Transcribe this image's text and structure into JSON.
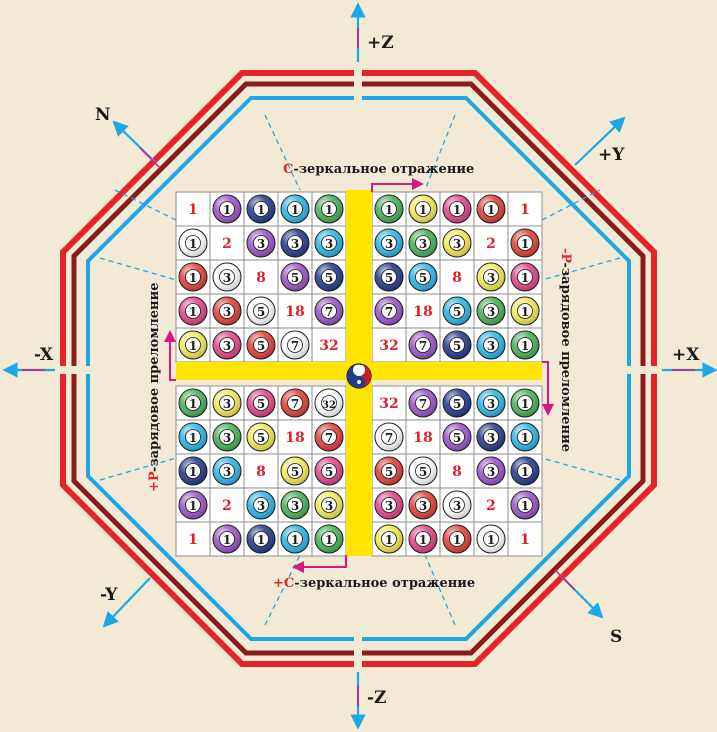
{
  "axes": {
    "plus_z": "+Z",
    "minus_z": "-Z",
    "plus_x": "+X",
    "minus_x": "-X",
    "plus_y": "+Y",
    "minus_y": "-Y",
    "n": "N",
    "s": "S"
  },
  "captions": {
    "top": [
      "-зеркальное отражение",
      "C"
    ],
    "bottom": [
      "-зеркальное отражение",
      "+C"
    ],
    "left": [
      "-зарядовое преломление",
      "+P"
    ],
    "right": [
      "-зарядовое преломление",
      "-P"
    ]
  },
  "colors": {
    "outer_red": "#e3242b",
    "outer_dark": "#8b1c1c",
    "inner_blue": "#1ea7e6",
    "band_yellow": "#ffe500",
    "arrow_magenta": "#d6197d",
    "plain_number": "#e0202a"
  },
  "quadrants": {
    "tl": [
      [
        {
          "n": "1",
          "c": "plain"
        },
        {
          "n": "1",
          "c": "purple"
        },
        {
          "n": "1",
          "c": "navy"
        },
        {
          "n": "1",
          "c": "cyan"
        },
        {
          "n": "1",
          "c": "green"
        }
      ],
      [
        {
          "n": "1",
          "c": "white"
        },
        {
          "n": "2",
          "c": "plain"
        },
        {
          "n": "3",
          "c": "purple"
        },
        {
          "n": "3",
          "c": "navy"
        },
        {
          "n": "3",
          "c": "cyan"
        }
      ],
      [
        {
          "n": "1",
          "c": "red"
        },
        {
          "n": "3",
          "c": "white"
        },
        {
          "n": "8",
          "c": "plain"
        },
        {
          "n": "5",
          "c": "purple"
        },
        {
          "n": "5",
          "c": "navy"
        }
      ],
      [
        {
          "n": "1",
          "c": "pink"
        },
        {
          "n": "3",
          "c": "red"
        },
        {
          "n": "5",
          "c": "white"
        },
        {
          "n": "18",
          "c": "plain"
        },
        {
          "n": "7",
          "c": "purple"
        }
      ],
      [
        {
          "n": "1",
          "c": "yellow"
        },
        {
          "n": "3",
          "c": "pink"
        },
        {
          "n": "5",
          "c": "red"
        },
        {
          "n": "7",
          "c": "white"
        },
        {
          "n": "32",
          "c": "plain"
        }
      ]
    ],
    "tr": [
      [
        {
          "n": "1",
          "c": "green"
        },
        {
          "n": "1",
          "c": "yellow"
        },
        {
          "n": "1",
          "c": "pink"
        },
        {
          "n": "1",
          "c": "red"
        },
        {
          "n": "1",
          "c": "plain"
        }
      ],
      [
        {
          "n": "3",
          "c": "cyan"
        },
        {
          "n": "3",
          "c": "green"
        },
        {
          "n": "3",
          "c": "yellow"
        },
        {
          "n": "2",
          "c": "plain"
        },
        {
          "n": "1",
          "c": "red"
        }
      ],
      [
        {
          "n": "5",
          "c": "navy"
        },
        {
          "n": "5",
          "c": "cyan"
        },
        {
          "n": "8",
          "c": "plain"
        },
        {
          "n": "3",
          "c": "yellow"
        },
        {
          "n": "1",
          "c": "pink"
        }
      ],
      [
        {
          "n": "7",
          "c": "purple"
        },
        {
          "n": "18",
          "c": "plain"
        },
        {
          "n": "5",
          "c": "cyan"
        },
        {
          "n": "3",
          "c": "green"
        },
        {
          "n": "1",
          "c": "yellow"
        }
      ],
      [
        {
          "n": "32",
          "c": "plain"
        },
        {
          "n": "7",
          "c": "purple"
        },
        {
          "n": "5",
          "c": "navy"
        },
        {
          "n": "3",
          "c": "cyan"
        },
        {
          "n": "1",
          "c": "green"
        }
      ]
    ],
    "bl": [
      [
        {
          "n": "1",
          "c": "green"
        },
        {
          "n": "3",
          "c": "yellow"
        },
        {
          "n": "5",
          "c": "pink"
        },
        {
          "n": "7",
          "c": "red"
        },
        {
          "n": "32",
          "c": "white"
        }
      ],
      [
        {
          "n": "1",
          "c": "cyan"
        },
        {
          "n": "3",
          "c": "green"
        },
        {
          "n": "5",
          "c": "yellow"
        },
        {
          "n": "18",
          "c": "plain"
        },
        {
          "n": "7",
          "c": "red"
        }
      ],
      [
        {
          "n": "1",
          "c": "navy"
        },
        {
          "n": "3",
          "c": "cyan"
        },
        {
          "n": "8",
          "c": "plain"
        },
        {
          "n": "5",
          "c": "yellow"
        },
        {
          "n": "5",
          "c": "pink"
        }
      ],
      [
        {
          "n": "1",
          "c": "purple"
        },
        {
          "n": "2",
          "c": "plain"
        },
        {
          "n": "3",
          "c": "cyan"
        },
        {
          "n": "3",
          "c": "green"
        },
        {
          "n": "3",
          "c": "yellow"
        }
      ],
      [
        {
          "n": "1",
          "c": "plain"
        },
        {
          "n": "1",
          "c": "purple"
        },
        {
          "n": "1",
          "c": "navy"
        },
        {
          "n": "1",
          "c": "cyan"
        },
        {
          "n": "1",
          "c": "green"
        }
      ]
    ],
    "br": [
      [
        {
          "n": "32",
          "c": "plain"
        },
        {
          "n": "7",
          "c": "purple"
        },
        {
          "n": "5",
          "c": "navy"
        },
        {
          "n": "3",
          "c": "cyan"
        },
        {
          "n": "1",
          "c": "green"
        }
      ],
      [
        {
          "n": "7",
          "c": "white"
        },
        {
          "n": "18",
          "c": "plain"
        },
        {
          "n": "5",
          "c": "purple"
        },
        {
          "n": "3",
          "c": "navy"
        },
        {
          "n": "1",
          "c": "cyan"
        }
      ],
      [
        {
          "n": "5",
          "c": "red"
        },
        {
          "n": "5",
          "c": "white"
        },
        {
          "n": "8",
          "c": "plain"
        },
        {
          "n": "3",
          "c": "purple"
        },
        {
          "n": "1",
          "c": "navy"
        }
      ],
      [
        {
          "n": "3",
          "c": "pink"
        },
        {
          "n": "3",
          "c": "red"
        },
        {
          "n": "3",
          "c": "white"
        },
        {
          "n": "2",
          "c": "plain"
        },
        {
          "n": "1",
          "c": "purple"
        }
      ],
      [
        {
          "n": "1",
          "c": "yellow"
        },
        {
          "n": "1",
          "c": "pink"
        },
        {
          "n": "1",
          "c": "red"
        },
        {
          "n": "1",
          "c": "white"
        },
        {
          "n": "1",
          "c": "plain"
        }
      ]
    ]
  }
}
